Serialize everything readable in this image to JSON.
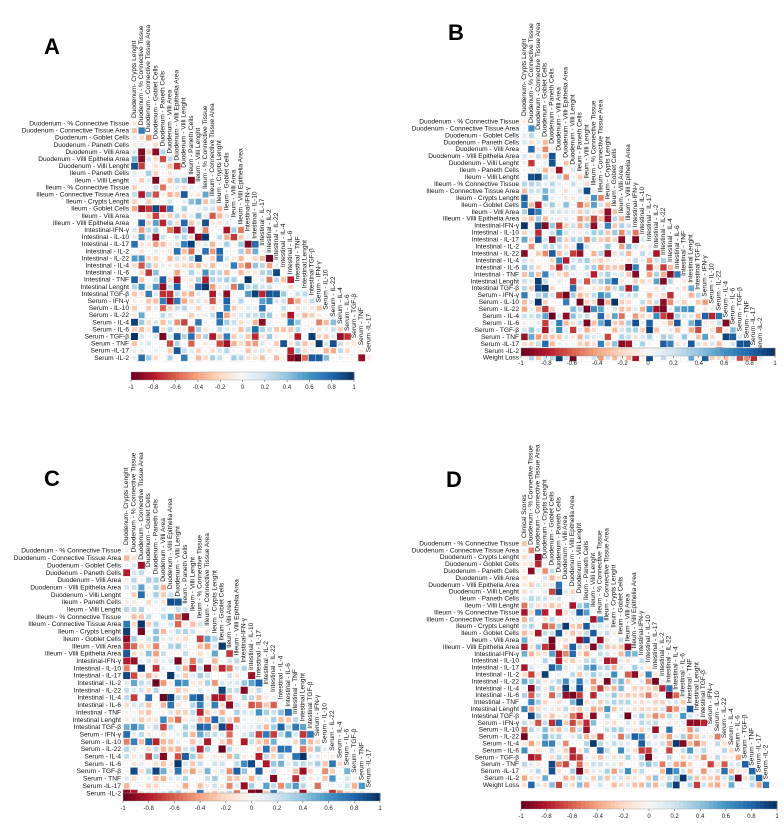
{
  "figure": {
    "panels": [
      "A",
      "B",
      "C",
      "D"
    ]
  },
  "chart_data": [
    {
      "type": "heatmap",
      "panel": "A",
      "title": "",
      "variables": [
        "Duodenum - % Connective Tissue",
        "Duodenum - Connective Tissue Area",
        "Duodenum - Goblet Cells",
        "Duodenum - Paneth Cells",
        "Duodenum - Villi Area",
        "Duodenum - Villi Epithelia Area",
        "Duodenum - Villi Lenght",
        "Ileum - Paneth Cells",
        "Ileum - Villi Lenght",
        "Ileum - % Connective Tissue",
        "Illeum - Connective Tissue Area",
        "Ileum - Crypts Lenght",
        "Ileum - Goblet Cells",
        "Ileum - Villi Area",
        "Illeum - Villi Epithelia Area",
        "Intestinal-IFN-γ",
        "Intestinal - IL-10",
        "Intestinal - IL-17",
        "Intestinal - IL-2",
        "Intestinal - IL-22",
        "Intestinal - IL-4",
        "Intestinal - IL-6",
        "Intestinal - TNF",
        "Intestinal Lenght",
        "Intestinal TGF-β",
        "Serum - IFN-γ",
        "Serum - IL-10",
        "Serum - IL-22",
        "Serum - IL-4",
        "Serum - IL-6",
        "Serum - TGF-β",
        "Serum - TNF",
        "Serum -IL-17",
        "Serum -IL-2"
      ],
      "column_labels": [
        "Duodenum- Crypts Lenght",
        "Duodenum - % Connective Tissue",
        "Duodenum - Connective Tissue Area",
        "Duodenum - Goblet Cells",
        "Duodenum - Paneth Cells",
        "Duodenum - Villi Area",
        "Duodenum - Villi Epithelia Area",
        "Duodenum - Villi Lenght",
        "Ileum - Paneth Cells",
        "Ileum - Villi Lenght",
        "Ileum - % Connective Tissue",
        "Illeum - Connective Tissue Area",
        "Ileum - Crypts Lenght",
        "Ileum - Goblet Cells",
        "Ileum - Villi Area",
        "Illeum - Villi Epithelia Area",
        "Intestinal-IFN-γ",
        "Intestinal - IL-10",
        "Intestinal - IL-17",
        "Intestinal - IL-2",
        "Intestinal - IL-22",
        "Intestinal - IL-4",
        "Intestinal - IL-6",
        "Intestinal - TNF",
        "Intestinal Lenght",
        "Intestinal TGF-β",
        "Serum - IFN-γ",
        "Serum - IL-10",
        "Serum - IL-22",
        "Serum - IL-4",
        "Serum - IL-6",
        "Serum - TGF-β",
        "Serum - TNF",
        "Serum -IL-17"
      ],
      "colorbar": {
        "ticks": [
          "-1",
          "-0.8",
          "-0.6",
          "-0.4",
          "-0.2",
          "0",
          "0.2",
          "0.4",
          "0.6",
          "0.8",
          "1"
        ],
        "range": [
          -1,
          1
        ]
      },
      "seed": 11
    },
    {
      "type": "heatmap",
      "panel": "B",
      "title": "",
      "variables": [
        "Duodenum - % Connective Tissue",
        "Duodenum - Connective Tissue Area",
        "Duodenum - Goblet Cells",
        "Duodenum - Paneth Cells",
        "Duodenum - Villi Area",
        "Duodenum - Villi Epithelia Area",
        "Duodenum - Villi Lenght",
        "Ileum - Paneth Cells",
        "Ileum - Villi Lenght",
        "Illeum - % Connective Tissue",
        "Illeum - Connective Tissue Area",
        "Ileum - Crypts Lenght",
        "Ileum - Goblet Cells",
        "Ileum - Villi Area",
        "Illeum - Villi Epithelia Area",
        "Intestinal-IFN-γ",
        "Intestinal - IL-10",
        "Intestinal - IL-17",
        "Intestinal - IL-2",
        "Intestinal - IL-22",
        "Intestinal - IL-4",
        "Intestinal - IL-6",
        "Intestinal - TNF",
        "Intestinal Lenght",
        "Intestinal TGF-β",
        "Serum - IFN-γ",
        "Serum - IL-10",
        "Serum - IL-22",
        "Serum - IL-4",
        "Serum - IL-6",
        "Serum - TGF-β",
        "Serum - TNF",
        "Serum -IL-17",
        "Serum -IL-2",
        "Weight Loss"
      ],
      "column_labels": [
        "Duodenum- Crypts Lenght",
        "Duodenum - % Connective Tissue",
        "Duodenum - Connective Tissue Area",
        "Duodenum - Goblet Cells",
        "Duodenum - Paneth Cells",
        "Duodenum - Villi Area",
        "Duodenum - Villi Epithelia Area",
        "Duodenum - Villi Lenght",
        "Ileum - Paneth Cells",
        "Ileum - Villi Lenght",
        "Illeum - % Connective Tissue",
        "Illeum - Connective Tissue Area",
        "Ileum - Crypts Lenght",
        "Ileum - Goblet Cells",
        "Ileum - Villi Area",
        "Illeum - Villi Epithelia Area",
        "Intestinal-IFN-γ",
        "Intestinal - IL-10",
        "Intestinal - IL-17",
        "Intestinal - IL-2",
        "Intestinal - IL-22",
        "Intestinal - IL-4",
        "Intestinal - IL-6",
        "Intestinal - TNF",
        "Intestinal Lenght",
        "Intestinal TGF-β",
        "Serum - IFN-γ",
        "Serum - IL-10",
        "Serum - IL-22",
        "Serum - IL-4",
        "Serum - IL-6",
        "Serum - TGF-β",
        "Serum - TNF",
        "Serum -IL-17",
        "Serum -IL-2"
      ],
      "colorbar": {
        "ticks": [
          "-1",
          "-0.8",
          "-0.6",
          "-0.4",
          "-0.2",
          "0",
          "0.2",
          "0.4",
          "0.6",
          "0.8",
          "1"
        ],
        "range": [
          -1,
          1
        ]
      },
      "seed": 23
    },
    {
      "type": "heatmap",
      "panel": "C",
      "title": "",
      "variables": [
        "Duodenum - % Connective Tissue",
        "Duodenum - Connective Tissue Area",
        "Duodenum - Goblet Cells",
        "Duodenum - Paneth Cells",
        "Duodenum - Villi Area",
        "Duodenum - Villi Epithelia Area",
        "Duodenum - Villi Lenght",
        "Ileum - Paneth Cells",
        "Ileum - Villi Lenght",
        "Illeum - % Connective Tissue",
        "Illeum - Connective Tissue Area",
        "Ileum - Crypts Lenght",
        "Ileum - Goblet Cells",
        "Illeum - Villi Area",
        "Illeum - Villi Epithelia Area",
        "Intestinal-IFN-γ",
        "Intestinal - IL-10",
        "Intestinal - IL-17",
        "Intestinal - IL-2",
        "Intestinal - IL-22",
        "Intestinal - IL-4",
        "Intestinal - IL-6",
        "Intestinal - TNF",
        "Intestinal Lenght",
        "Intestinal TGF-β",
        "Serum - IFN-γ",
        "Serum - IL-10",
        "Serum - IL-22",
        "Serum - IL-4",
        "Serum - IL-6",
        "Serum - TGF-β",
        "Serum - TNF",
        "Serum -IL-17",
        "Serum -IL-2"
      ],
      "column_labels": [
        "Duodenum- Crypts Lenght",
        "Duodenum - % Connective Tissue",
        "Duodenum - Connective Tissue Area",
        "Duodenum - Goblet Cells",
        "Duodenum - Paneth Cells",
        "Duodenum - Villi Area",
        "Duodenum - Villi Epithelia Area",
        "Duodenum - Villi Lenght",
        "Ileum - Paneth Cells",
        "Ileum - Villi Lenght",
        "Ileum - % Connective Tissue",
        "Illeum - Connective Tissue Area",
        "Ileum - Crypts Lenght",
        "Ileum - Goblet Cells",
        "Ileum - Villi Area",
        "Illeum - Villi Epithelia Area",
        "Intestinal-IFN-γ",
        "Intestinal - IL-10",
        "Intestinal - IL-17",
        "Intestinal - IL-2",
        "Intestinal - IL-22",
        "Intestinal - IL-4",
        "Intestinal - IL-6",
        "Intestinal - TNF",
        "Intestinal Lenght",
        "Intestinal TGF-β",
        "Serum - IFN-γ",
        "Serum - IL-10",
        "Serum - IL-22",
        "Serum - IL-4",
        "Serum - IL-6",
        "Serum - TGF-β",
        "Serum - TNF",
        "Serum -IL-17"
      ],
      "colorbar": {
        "ticks": [
          "-1",
          "-0.8",
          "-0.6",
          "-0.4",
          "-0.2",
          "0",
          "0.2",
          "0.4",
          "0.6",
          "0.8",
          "1"
        ],
        "range": [
          -1,
          1
        ]
      },
      "seed": 37
    },
    {
      "type": "heatmap",
      "panel": "D",
      "title": "",
      "variables": [
        "Duodenum - % Connective Tissue",
        "Duodenum - Connective Tissue Area",
        "Duodenum - Crypts Lenght",
        "Duodenum - Goblet Cells",
        "Duodenum - Paneth Cells",
        "Duodenum - Villi Area",
        "Duodenum - Villi Epithelia Area",
        "Duodenum - Villi Lenght",
        "Ileum - Paneth Cells",
        "Ileum - Villi Lenght",
        "Illeum - % Connective Tissue",
        "Illeum - Connective Tissue Area",
        "Ileum - Crypts Lenght",
        "Ileum - Goblet Cells",
        "Ileum - Villi Area",
        "Illeum - Villi Epithelia Area",
        "Intestinal-IFN-γ",
        "Intestinal - IL-10",
        "Intestinal - IL-17",
        "Intestinal - IL-2",
        "Intestinal - IL-22",
        "Intestinal - IL-4",
        "Intestinal - IL-6",
        "Intestinal - TNF",
        "Intestinal Lenght",
        "Intestinal TGF-β",
        "Serum - IFN-γ",
        "Serum - IL-10",
        "Serum - IL-22",
        "Serum - IL-4",
        "Serum - IL-6",
        "Serum - TGF-β",
        "Serum - TNF",
        "Serum -IL-17",
        "Serum -IL-2",
        "Weight Loss"
      ],
      "column_labels": [
        "Clinical Scores",
        "Duodenum - % Connective Tissue",
        "Duodenum - Connective Tissue Area",
        "Duodenum - Crypts Lenght",
        "Duodenum - Goblet Cells",
        "Duodenum - Paneth Cells",
        "Duodenum - Villi Area",
        "Duodenum - Villi Epithelia Area",
        "Duodenum - Villi Lenght",
        "Ileum - Paneth Cells",
        "Ileum - Villi Lenght",
        "Ileum - % Connective Tissue",
        "Illeum - Connective Tissue Area",
        "Ileum - Crypts Lenght",
        "Ileum - Goblet Cells",
        "Ileum - Villi Area",
        "Illeum - Villi Epithelia Area",
        "Intestinal-IFN-γ",
        "Intestinal - IL-10",
        "Intestinal - IL-17",
        "Intestinal - IL-2",
        "Intestinal - IL-22",
        "Intestinal - IL-4",
        "Intestinal - IL-6",
        "Intestinal - TNF",
        "Intestinal Lenght",
        "Intestinal TGF-β",
        "Serum - IFN-γ",
        "Serum - IL-10",
        "Serum - IL-22",
        "Serum - IL-4",
        "Serum - IL-6",
        "Serum - TGF-β",
        "Serum - TNF",
        "Serum -IL-17",
        "Serum -IL-2"
      ],
      "colorbar": {
        "ticks": [
          "-1",
          "-0.8",
          "-0.6",
          "-0.4",
          "-0.2",
          "0",
          "0.2",
          "0.4",
          "0.6",
          "0.8",
          "1"
        ],
        "range": [
          -1,
          1
        ]
      },
      "seed": 53
    }
  ]
}
